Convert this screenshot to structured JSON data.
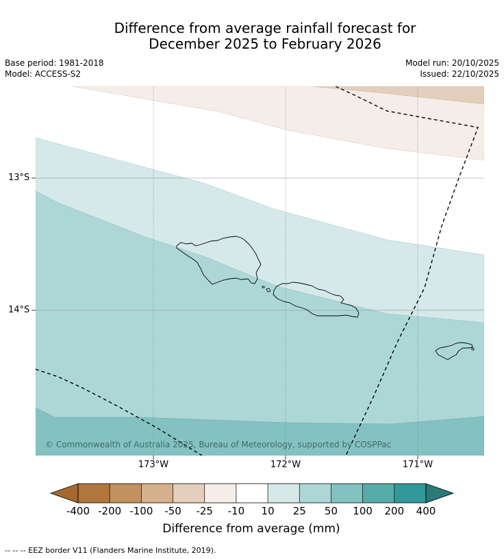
{
  "title": {
    "line1": "Difference from average rainfall forecast for",
    "line2": "December 2025 to February 2026"
  },
  "meta": {
    "base_period": "Base period: 1981-2018",
    "model": "Model: ACCESS-S2",
    "model_run": "Model run: 20/10/2025",
    "issued": "Issued: 22/10/2025"
  },
  "map": {
    "latitude_labels": [
      "13°S",
      "14°S"
    ],
    "longitude_labels": [
      "173°W",
      "172°W",
      "171°W"
    ],
    "copyright": "© Commonwealth of Australia 2025, Bureau of Meteorology, supported by COSPPac"
  },
  "colorbar": {
    "title": "Difference from average (mm)",
    "ticks": [
      "-400",
      "-200",
      "-100",
      "-50",
      "-25",
      "-10",
      "10",
      "25",
      "50",
      "100",
      "200",
      "400"
    ],
    "colors": [
      "#a5692f",
      "#b0763b",
      "#c1915f",
      "#d4b08c",
      "#e3cfbb",
      "#f5ede7",
      "#ffffff",
      "#d4e9e8",
      "#add7d7",
      "#84c1c1",
      "#57abab",
      "#319999",
      "#2a7a7a"
    ]
  },
  "footnote": "-- -- -- EEZ border V11 (Flanders Marine Institute, 2019)."
}
